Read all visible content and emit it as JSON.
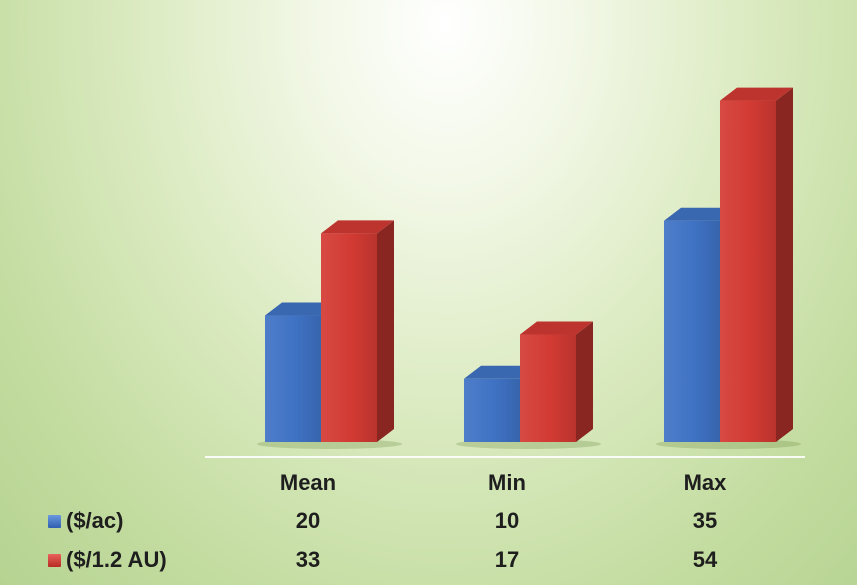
{
  "chart_data": {
    "type": "bar",
    "categories": [
      "Mean",
      "Min",
      "Max"
    ],
    "series": [
      {
        "name": "($/ac)",
        "values": [
          20,
          10,
          35
        ],
        "color": "#3f72c4"
      },
      {
        "name": "($/1.2 AU)",
        "values": [
          33,
          17,
          54
        ],
        "color": "#d23a33"
      }
    ],
    "ylim": [
      0,
      56
    ],
    "data_table": true,
    "gridlines": false,
    "style": "3d-column"
  }
}
